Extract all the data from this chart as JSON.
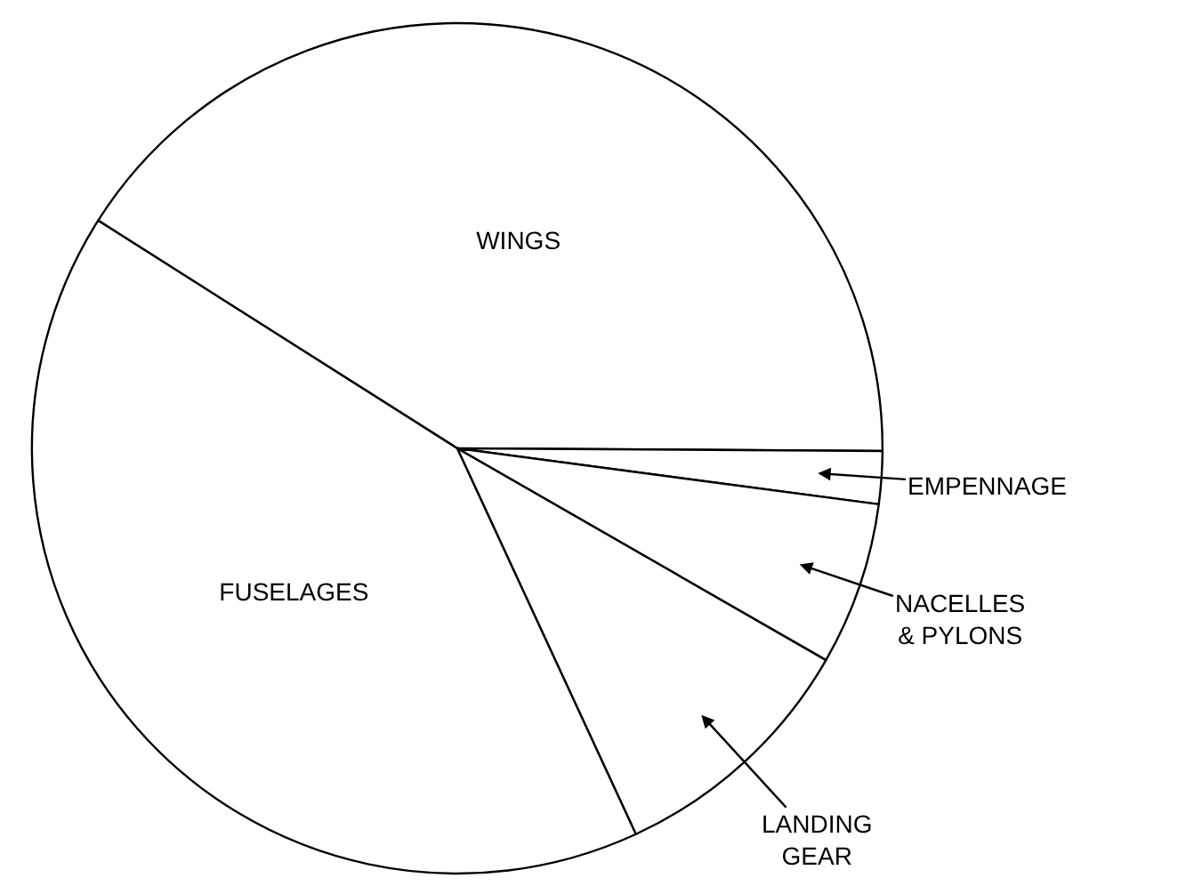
{
  "chart_data": {
    "type": "pie",
    "categories": [
      "WINGS",
      "EMPENNAGE",
      "NACELLES & PYLONS",
      "LANDING GEAR",
      "FUSELAGES"
    ],
    "values": [
      41.1,
      2,
      6.2,
      9.8,
      40.9
    ],
    "colors": [
      "#ffffff",
      "#ffffff",
      "#ffffff",
      "#ffffff",
      "#ffffff"
    ],
    "legend": false
  }
}
